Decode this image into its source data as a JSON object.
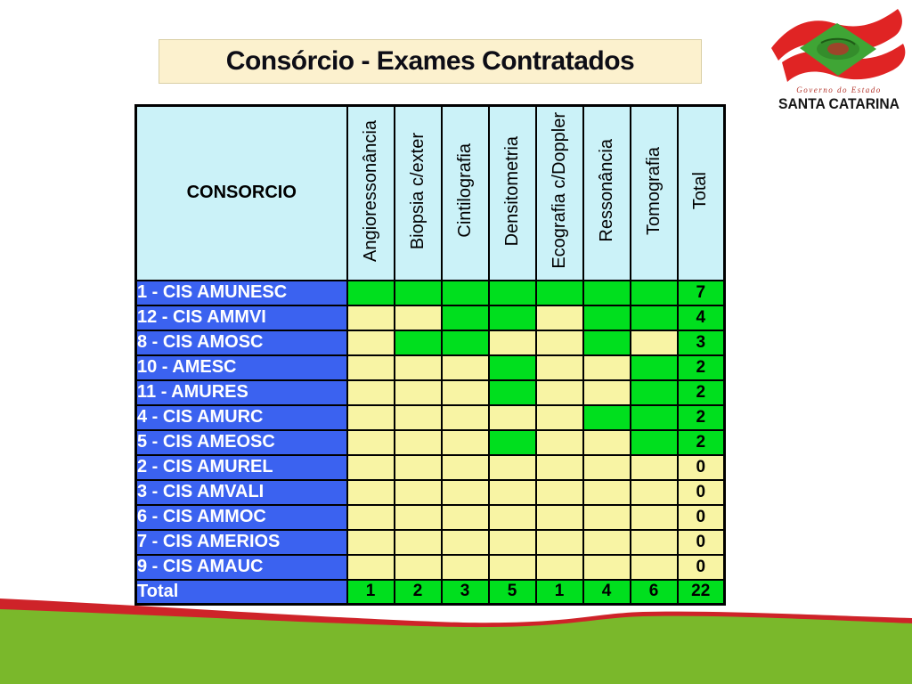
{
  "title": "Consórcio - Exames Contratados",
  "logo": {
    "line1": "Governo do Estado",
    "line2": "SANTA CATARINA"
  },
  "table": {
    "corner_header": "CONSORCIO",
    "columns": [
      "Angioressonância",
      "Biopsia c/exter",
      "Cintilografia",
      "Densitometria",
      "Ecografia c/Doppler",
      "Ressonância",
      "Tomografia",
      "Total"
    ],
    "rows": [
      {
        "label": "1 - CIS AMUNESC",
        "contracted": [
          1,
          1,
          1,
          1,
          1,
          1,
          1
        ],
        "total": 7
      },
      {
        "label": "12 - CIS AMMVI",
        "contracted": [
          0,
          0,
          1,
          1,
          0,
          1,
          1
        ],
        "total": 4
      },
      {
        "label": "8 - CIS AMOSC",
        "contracted": [
          0,
          1,
          1,
          0,
          0,
          1,
          0
        ],
        "total": 3
      },
      {
        "label": "10 - AMESC",
        "contracted": [
          0,
          0,
          0,
          1,
          0,
          0,
          1
        ],
        "total": 2
      },
      {
        "label": "11 - AMURES",
        "contracted": [
          0,
          0,
          0,
          1,
          0,
          0,
          1
        ],
        "total": 2
      },
      {
        "label": "4 - CIS AMURC",
        "contracted": [
          0,
          0,
          0,
          0,
          0,
          1,
          1
        ],
        "total": 2
      },
      {
        "label": "5 - CIS AMEOSC",
        "contracted": [
          0,
          0,
          0,
          1,
          0,
          0,
          1
        ],
        "total": 2
      },
      {
        "label": "2 - CIS AMUREL",
        "contracted": [
          0,
          0,
          0,
          0,
          0,
          0,
          0
        ],
        "total": 0
      },
      {
        "label": "3 - CIS AMVALI",
        "contracted": [
          0,
          0,
          0,
          0,
          0,
          0,
          0
        ],
        "total": 0
      },
      {
        "label": "6 - CIS AMMOC",
        "contracted": [
          0,
          0,
          0,
          0,
          0,
          0,
          0
        ],
        "total": 0
      },
      {
        "label": "7 - CIS AMERIOS",
        "contracted": [
          0,
          0,
          0,
          0,
          0,
          0,
          0
        ],
        "total": 0
      },
      {
        "label": "9 - CIS AMAUC",
        "contracted": [
          0,
          0,
          0,
          0,
          0,
          0,
          0
        ],
        "total": 0
      }
    ],
    "total_row": {
      "label": "Total",
      "values": [
        1,
        2,
        3,
        5,
        1,
        4,
        6
      ],
      "total": 22
    }
  },
  "colors": {
    "cell_green": "#00DF1E",
    "cell_yellow": "#F8F4A4",
    "row_blue": "#3B62F0",
    "header_cyan": "#CBF2F8",
    "cream": "#FCF1CE",
    "cream_border": "#D9CFA5",
    "wave_green": "#7AB82B",
    "wave_red": "#CE2329",
    "logo_red": "#E02424",
    "logo_flag_green": "#3FA535"
  }
}
